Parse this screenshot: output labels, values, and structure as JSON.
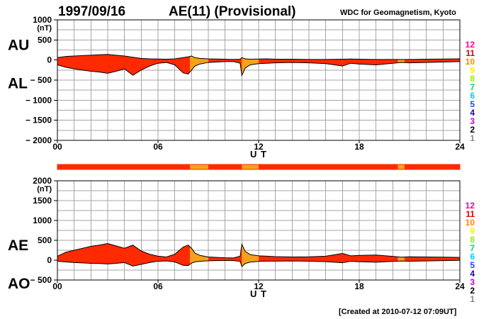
{
  "header": {
    "date": "1997/09/16",
    "index_title": "AE(11) (Provisional)",
    "source": "WDC for Geomagnetism, Kyoto",
    "created": "[Created at 2010-07-12 07:09UT]"
  },
  "colors": {
    "fill_many_stations": "#ff2a00",
    "fill_fewer_stations": "#f5a21b",
    "outline": "#000000",
    "grid": "#a6a6a6"
  },
  "station_scale": {
    "labels": [
      "12",
      "11",
      "10",
      "9",
      "8",
      "7",
      "6",
      "5",
      "4",
      "3",
      "2",
      "1"
    ],
    "colors": [
      "#ff0099",
      "#dd0000",
      "#ff8800",
      "#ffee00",
      "#99ee00",
      "#00dd66",
      "#00ccff",
      "#2244ff",
      "#2200aa",
      "#cc00cc",
      "#000000",
      "#888888"
    ]
  },
  "chart_data": [
    {
      "type": "area",
      "panel": "upper",
      "upper_label": "AU",
      "lower_label": "AL",
      "unit": "(nT)",
      "xlabel": "U T",
      "xlim": [
        0,
        24
      ],
      "ylim": [
        -2000,
        1000
      ],
      "yticks": [
        1000,
        500,
        0,
        -500,
        -1000,
        -1500,
        -2000
      ],
      "ytick_labels": [
        "1000",
        "500",
        "0",
        "− 500",
        "− 1000",
        "− 1500",
        "− 2000"
      ],
      "xticks": [
        0,
        6,
        12,
        18,
        24
      ],
      "xtick_labels": [
        "00",
        "06",
        "12",
        "18",
        "24"
      ],
      "grid": true,
      "series": [
        {
          "name": "AU",
          "x": [
            0,
            0.5,
            1,
            1.5,
            2,
            2.5,
            3,
            3.5,
            4,
            4.5,
            5,
            5.5,
            6,
            6.5,
            7,
            7.5,
            7.8,
            8,
            8.2,
            8.5,
            9,
            9.5,
            10,
            10.5,
            10.9,
            11,
            11.2,
            11.5,
            12,
            12.5,
            13,
            14,
            15,
            16,
            17,
            17.5,
            18,
            19,
            20,
            20.5,
            21,
            22,
            23,
            24
          ],
          "y": [
            60,
            90,
            100,
            110,
            120,
            130,
            140,
            120,
            100,
            70,
            40,
            30,
            25,
            20,
            30,
            60,
            80,
            100,
            60,
            40,
            30,
            25,
            20,
            15,
            20,
            60,
            30,
            20,
            25,
            30,
            20,
            20,
            15,
            15,
            20,
            25,
            20,
            15,
            15,
            15,
            15,
            20,
            25,
            30
          ]
        },
        {
          "name": "AL",
          "x": [
            0,
            0.5,
            1,
            1.5,
            2,
            2.5,
            3,
            3.5,
            4,
            4.5,
            5,
            5.5,
            6,
            6.5,
            7,
            7.5,
            7.8,
            8,
            8.2,
            8.5,
            9,
            9.5,
            10,
            10.5,
            10.9,
            11,
            11.2,
            11.5,
            12,
            12.5,
            13,
            14,
            15,
            16,
            17,
            17.5,
            18,
            19,
            20,
            20.5,
            21,
            22,
            23,
            24
          ],
          "y": [
            -120,
            -180,
            -220,
            -250,
            -280,
            -300,
            -330,
            -280,
            -220,
            -380,
            -250,
            -150,
            -80,
            -60,
            -120,
            -320,
            -350,
            -250,
            -150,
            -100,
            -60,
            -50,
            -40,
            -40,
            -80,
            -380,
            -200,
            -120,
            -90,
            -80,
            -70,
            -60,
            -70,
            -90,
            -150,
            -80,
            -100,
            -120,
            -80,
            -60,
            -70,
            -60,
            -50,
            -40
          ]
        }
      ],
      "reduced_coverage_ut": [
        [
          7.9,
          9.0
        ],
        [
          11.0,
          12.0
        ],
        [
          20.3,
          20.7
        ]
      ]
    },
    {
      "type": "area",
      "panel": "lower",
      "upper_label": "AE",
      "lower_label": "AO",
      "unit": "(nT)",
      "xlabel": "U T",
      "xlim": [
        0,
        24
      ],
      "ylim": [
        -500,
        2000
      ],
      "yticks": [
        2000,
        1500,
        1000,
        500,
        0,
        -500
      ],
      "ytick_labels": [
        "2000",
        "1500",
        "1000",
        "500",
        "0",
        "− 500"
      ],
      "xticks": [
        0,
        6,
        12,
        18,
        24
      ],
      "xtick_labels": [
        "00",
        "06",
        "12",
        "18",
        "24"
      ],
      "grid": true,
      "series": [
        {
          "name": "AE",
          "x": [
            0,
            0.5,
            1,
            1.5,
            2,
            2.5,
            3,
            3.5,
            4,
            4.5,
            5,
            5.5,
            6,
            6.5,
            7,
            7.5,
            7.8,
            8,
            8.2,
            8.5,
            9,
            9.5,
            10,
            10.5,
            10.9,
            11,
            11.2,
            11.5,
            12,
            12.5,
            13,
            14,
            15,
            16,
            17,
            17.5,
            18,
            19,
            20,
            20.5,
            21,
            22,
            23,
            24
          ],
          "y": [
            100,
            200,
            250,
            300,
            350,
            380,
            420,
            360,
            300,
            380,
            230,
            150,
            100,
            80,
            150,
            330,
            380,
            300,
            180,
            120,
            80,
            70,
            60,
            55,
            100,
            400,
            220,
            140,
            110,
            100,
            90,
            80,
            85,
            100,
            170,
            110,
            120,
            130,
            95,
            75,
            85,
            80,
            75,
            70
          ]
        },
        {
          "name": "AO",
          "x": [
            0,
            0.5,
            1,
            1.5,
            2,
            2.5,
            3,
            3.5,
            4,
            4.5,
            5,
            5.5,
            6,
            6.5,
            7,
            7.5,
            7.8,
            8,
            8.2,
            8.5,
            9,
            9.5,
            10,
            10.5,
            10.9,
            11,
            11.2,
            11.5,
            12,
            12.5,
            13,
            14,
            15,
            16,
            17,
            17.5,
            18,
            19,
            20,
            20.5,
            21,
            22,
            23,
            24
          ],
          "y": [
            -30,
            -45,
            -60,
            -70,
            -80,
            -85,
            -95,
            -80,
            -60,
            -150,
            -105,
            -60,
            -28,
            -20,
            -45,
            -130,
            -135,
            -75,
            -45,
            -30,
            -15,
            -12,
            -10,
            -12,
            -30,
            -160,
            -85,
            -50,
            -32,
            -25,
            -25,
            -20,
            -27,
            -37,
            -65,
            -28,
            -40,
            -52,
            -32,
            -22,
            -27,
            -20,
            -12,
            -5
          ]
        }
      ],
      "reduced_coverage_ut": [
        [
          7.9,
          9.0
        ],
        [
          11.0,
          12.0
        ],
        [
          20.3,
          20.7
        ]
      ]
    }
  ]
}
